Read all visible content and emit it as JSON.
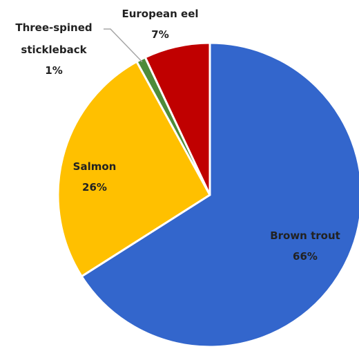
{
  "chart_data": {
    "type": "pie",
    "title": "",
    "slices": [
      {
        "label": "Brown trout",
        "value": 66,
        "value_label": "66%",
        "color": "#3366CC"
      },
      {
        "label": "Salmon",
        "value": 26,
        "value_label": "26%",
        "color": "#FFC000"
      },
      {
        "label": "Three-spined\nstickleback",
        "label_line1": "Three-spined",
        "label_line2": "stickleback",
        "value": 1,
        "value_label": "1%",
        "color": "#4E8B3A"
      },
      {
        "label": "European eel",
        "value": 7,
        "value_label": "7%",
        "color": "#C00000"
      }
    ],
    "start_angle_deg": 0,
    "direction": "clockwise",
    "legend": "none",
    "data_labels": "category name and percentage",
    "leader_line_color": "#A6A6A6"
  }
}
